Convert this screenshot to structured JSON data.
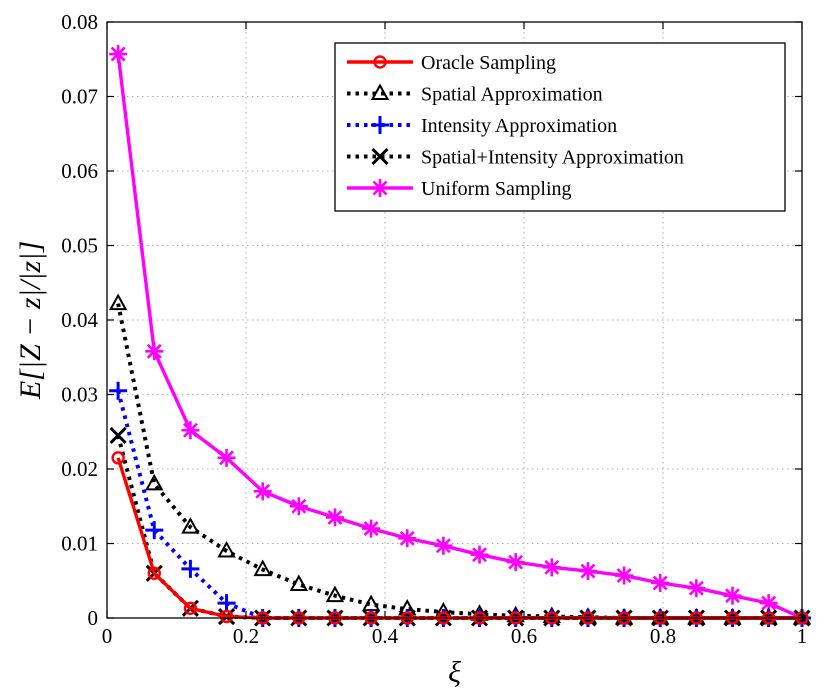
{
  "chart_data": {
    "type": "line",
    "title": "",
    "xlabel": "ξ",
    "ylabel": "E[|Z − z|/|z|]",
    "xlim": [
      0,
      1
    ],
    "ylim": [
      0,
      0.08
    ],
    "x_ticks": [
      "0",
      "0.2",
      "0.4",
      "0.6",
      "0.8",
      "1"
    ],
    "y_ticks": [
      "0",
      "0.01",
      "0.02",
      "0.03",
      "0.04",
      "0.05",
      "0.06",
      "0.07",
      "0.08"
    ],
    "grid": true,
    "legend_position": "top-right",
    "x": [
      0.016,
      0.068,
      0.12,
      0.172,
      0.224,
      0.276,
      0.328,
      0.38,
      0.432,
      0.484,
      0.536,
      0.588,
      0.64,
      0.692,
      0.744,
      0.796,
      0.848,
      0.9,
      0.952,
      1.0
    ],
    "series": [
      {
        "name": "Oracle Sampling",
        "color": "#ff0000",
        "line": "solid",
        "marker": "circle",
        "values": [
          0.0215,
          0.006,
          0.0013,
          0.0002,
          0,
          0,
          0,
          0,
          0,
          0,
          0,
          0,
          0,
          0,
          0,
          0,
          0,
          0,
          0,
          0
        ]
      },
      {
        "name": "Spatial Approximation",
        "color": "#000000",
        "line": "dotted",
        "marker": "triangle",
        "values": [
          0.0422,
          0.018,
          0.0122,
          0.009,
          0.0065,
          0.0045,
          0.003,
          0.0018,
          0.0012,
          0.0008,
          0.0005,
          0.0003,
          0.0002,
          0.0001,
          0,
          0,
          0,
          0,
          0,
          0
        ]
      },
      {
        "name": "Intensity Approximation",
        "color": "#0000ff",
        "line": "dotted",
        "marker": "plus",
        "values": [
          0.0305,
          0.0118,
          0.0066,
          0.002,
          0,
          0,
          0,
          0,
          0,
          0,
          0,
          0,
          0,
          0,
          0,
          0,
          0,
          0,
          0,
          0
        ]
      },
      {
        "name": "Spatial+Intensity Approximation",
        "color": "#000000",
        "line": "dotted",
        "marker": "x",
        "values": [
          0.0245,
          0.006,
          0.0013,
          0.0002,
          0,
          0,
          0,
          0,
          0,
          0,
          0,
          0,
          0,
          0,
          0,
          0,
          0,
          0,
          0,
          0
        ]
      },
      {
        "name": "Uniform Sampling",
        "color": "#ff00ff",
        "line": "solid",
        "marker": "star",
        "values": [
          0.0757,
          0.0358,
          0.0252,
          0.0215,
          0.017,
          0.015,
          0.0135,
          0.012,
          0.0107,
          0.0097,
          0.0085,
          0.0075,
          0.0068,
          0.0063,
          0.0057,
          0.0047,
          0.004,
          0.003,
          0.002,
          0
        ]
      }
    ]
  }
}
